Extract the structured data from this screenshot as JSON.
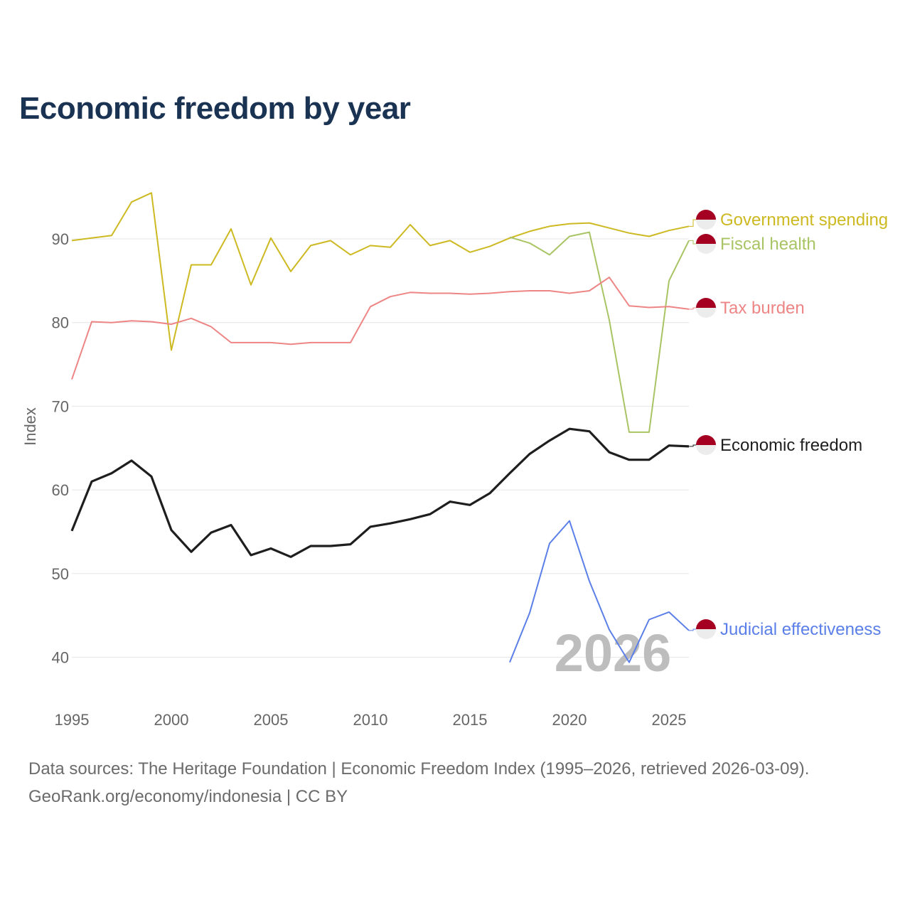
{
  "title": "Economic freedom by year",
  "footer": {
    "line1": "Data sources: The Heritage Foundation | Economic Freedom Index (1995–2026, retrieved 2026-03-09).",
    "line2": "GeoRank.org/economy/indonesia | CC BY"
  },
  "chart_data": {
    "type": "line",
    "title": "Economic freedom by year",
    "xlabel": "",
    "ylabel": "Index",
    "watermark": "2026",
    "xlim": [
      1995,
      2026
    ],
    "ylim": [
      35,
      97
    ],
    "xticks": [
      1995,
      2000,
      2005,
      2010,
      2015,
      2020,
      2025
    ],
    "yticks": [
      40,
      50,
      60,
      70,
      80,
      90
    ],
    "grid": true,
    "legend": "direct labels right",
    "flag_colors": {
      "top": "#a50021",
      "bottom": "#ececec"
    },
    "series": [
      {
        "name": "Government spending",
        "color": "#cdb921",
        "width": 2,
        "start": 1995,
        "values": [
          89.8,
          90.1,
          90.4,
          94.4,
          95.5,
          76.7,
          86.9,
          86.9,
          91.2,
          84.5,
          90.1,
          86.1,
          89.2,
          89.8,
          88.1,
          89.2,
          89.0,
          91.7,
          89.2,
          89.8,
          88.4,
          89.1,
          90.1,
          90.9,
          91.5,
          91.8,
          91.9,
          91.3,
          90.7,
          90.3,
          91.0,
          91.5
        ]
      },
      {
        "name": "Fiscal health",
        "color": "#a8c464",
        "width": 2,
        "start": 2017,
        "values": [
          90.2,
          89.5,
          88.1,
          90.3,
          90.8,
          80.3,
          66.9,
          66.9,
          85.0,
          89.8
        ]
      },
      {
        "name": "Tax burden",
        "color": "#ee8585",
        "width": 2,
        "start": 1995,
        "values": [
          73.2,
          80.1,
          80.0,
          80.2,
          80.1,
          79.8,
          80.5,
          79.5,
          77.6,
          77.6,
          77.6,
          77.4,
          77.6,
          77.6,
          77.6,
          81.9,
          83.1,
          83.6,
          83.5,
          83.5,
          83.4,
          83.5,
          83.7,
          83.8,
          83.8,
          83.5,
          83.8,
          85.4,
          82.0,
          81.8,
          81.9,
          81.6
        ]
      },
      {
        "name": "Economic freedom",
        "color": "#1e1e1e",
        "width": 3.2,
        "start": 1995,
        "values": [
          55.1,
          61.0,
          62.0,
          63.5,
          61.6,
          55.2,
          52.6,
          54.9,
          55.8,
          52.2,
          53.0,
          52.0,
          53.3,
          53.3,
          53.5,
          55.6,
          56.0,
          56.5,
          57.1,
          58.6,
          58.2,
          59.6,
          62.0,
          64.3,
          65.9,
          67.3,
          67.0,
          64.5,
          63.6,
          63.6,
          65.3,
          65.2
        ]
      },
      {
        "name": "Judicial effectiveness",
        "color": "#5b7fe8",
        "width": 2,
        "start": 2017,
        "values": [
          39.4,
          45.3,
          53.6,
          56.3,
          49.1,
          43.3,
          39.4,
          44.5,
          45.4,
          43.2
        ]
      }
    ]
  }
}
